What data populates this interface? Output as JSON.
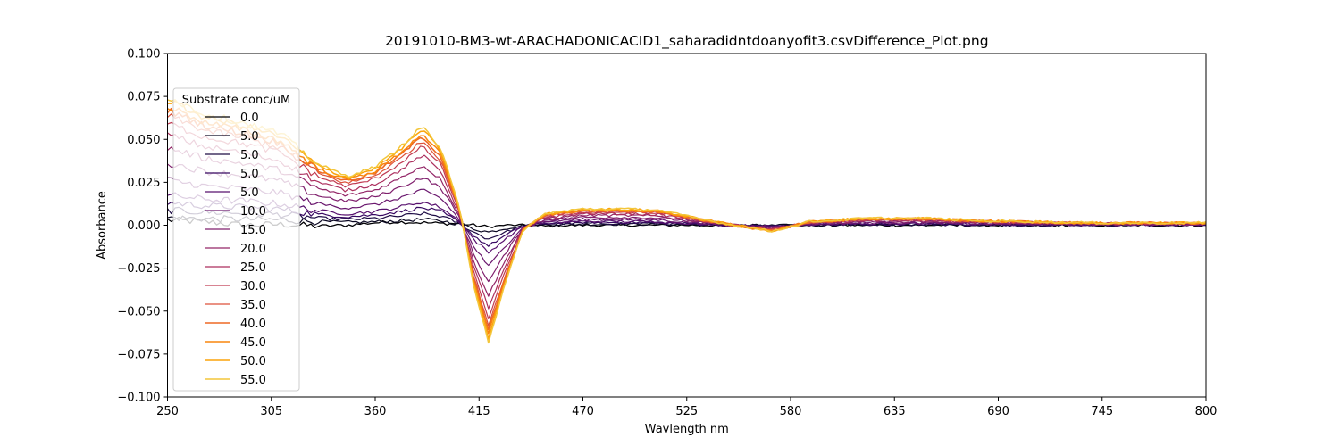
{
  "chart_data": {
    "type": "line",
    "title": "20191010-BM3-wt-ARACHADONICACID1_saharadidntdoanyofit3.csvDifference_Plot.png",
    "xlabel": "Wavlength nm",
    "ylabel": "Absorbance",
    "xlim": [
      250,
      800
    ],
    "ylim": [
      -0.1,
      0.1
    ],
    "xticks": [
      250,
      305,
      360,
      415,
      470,
      525,
      580,
      635,
      690,
      745,
      800
    ],
    "xtick_labels": [
      "250",
      "305",
      "360",
      "415",
      "470",
      "525",
      "580",
      "635",
      "690",
      "745",
      "800"
    ],
    "yticks": [
      0.1,
      0.075,
      0.05,
      0.025,
      0.0,
      -0.025,
      -0.05,
      -0.075,
      -0.1
    ],
    "ytick_labels": [
      "0.100",
      "0.075",
      "0.050",
      "0.025",
      "0.000",
      "−0.025",
      "−0.050",
      "−0.075",
      "−0.100"
    ],
    "grid": false,
    "legend": {
      "title": "Substrate conc/uM",
      "placement": "left"
    },
    "shape_x": [
      250,
      270,
      290,
      310,
      330,
      345,
      360,
      372,
      385,
      395,
      405,
      412,
      420,
      428,
      438,
      450,
      470,
      490,
      510,
      530,
      550,
      570,
      590,
      620,
      650,
      680,
      710,
      740,
      770,
      800
    ],
    "shape_y": [
      1.1,
      0.95,
      0.88,
      0.78,
      0.52,
      0.42,
      0.5,
      0.65,
      0.85,
      0.65,
      0.12,
      -0.5,
      -1.0,
      -0.55,
      -0.05,
      0.1,
      0.14,
      0.14,
      0.13,
      0.06,
      0.0,
      -0.05,
      0.03,
      0.06,
      0.06,
      0.04,
      0.03,
      0.02,
      0.02,
      0.02
    ],
    "zero_shape_y": [
      0.03,
      0.02,
      0.0,
      0.005,
      -0.005,
      0.0,
      0.015,
      0.02,
      0.015,
      0.01,
      0.01,
      0.0,
      -0.01,
      0.0,
      0.0,
      -0.005,
      0.0,
      0.0,
      0.0,
      0.0,
      0.0,
      0.0,
      0.0,
      0.0,
      0.0,
      0.0,
      0.0,
      0.0,
      0.0,
      0.0
    ],
    "series": [
      {
        "name": "0.0",
        "color": "#000004",
        "amplitude": 0.0,
        "width": 1.3
      },
      {
        "name": "5.0",
        "color": "#0a0722",
        "amplitude": 0.004,
        "width": 1.2
      },
      {
        "name": "5.0",
        "color": "#1e0c45",
        "amplitude": 0.008,
        "width": 1.2
      },
      {
        "name": "5.0",
        "color": "#380962",
        "amplitude": 0.012,
        "width": 1.2
      },
      {
        "name": "5.0",
        "color": "#57106e",
        "amplitude": 0.016,
        "width": 1.2
      },
      {
        "name": "10.0",
        "color": "#6a176e",
        "amplitude": 0.024,
        "width": 1.2
      },
      {
        "name": "15.0",
        "color": "#7f1e6c",
        "amplitude": 0.033,
        "width": 1.2
      },
      {
        "name": "20.0",
        "color": "#932667",
        "amplitude": 0.041,
        "width": 1.2
      },
      {
        "name": "25.0",
        "color": "#ac2f5e",
        "amplitude": 0.048,
        "width": 1.2
      },
      {
        "name": "30.0",
        "color": "#c03a51",
        "amplitude": 0.054,
        "width": 1.2
      },
      {
        "name": "35.0",
        "color": "#dd513a",
        "amplitude": 0.058,
        "width": 1.2
      },
      {
        "name": "40.0",
        "color": "#ed6925",
        "amplitude": 0.061,
        "width": 1.6
      },
      {
        "name": "45.0",
        "color": "#f8850f",
        "amplitude": 0.063,
        "width": 1.5
      },
      {
        "name": "50.0",
        "color": "#fba40a",
        "amplitude": 0.066,
        "width": 1.5
      },
      {
        "name": "55.0",
        "color": "#f3c63a",
        "amplitude": 0.068,
        "width": 1.5
      }
    ]
  }
}
